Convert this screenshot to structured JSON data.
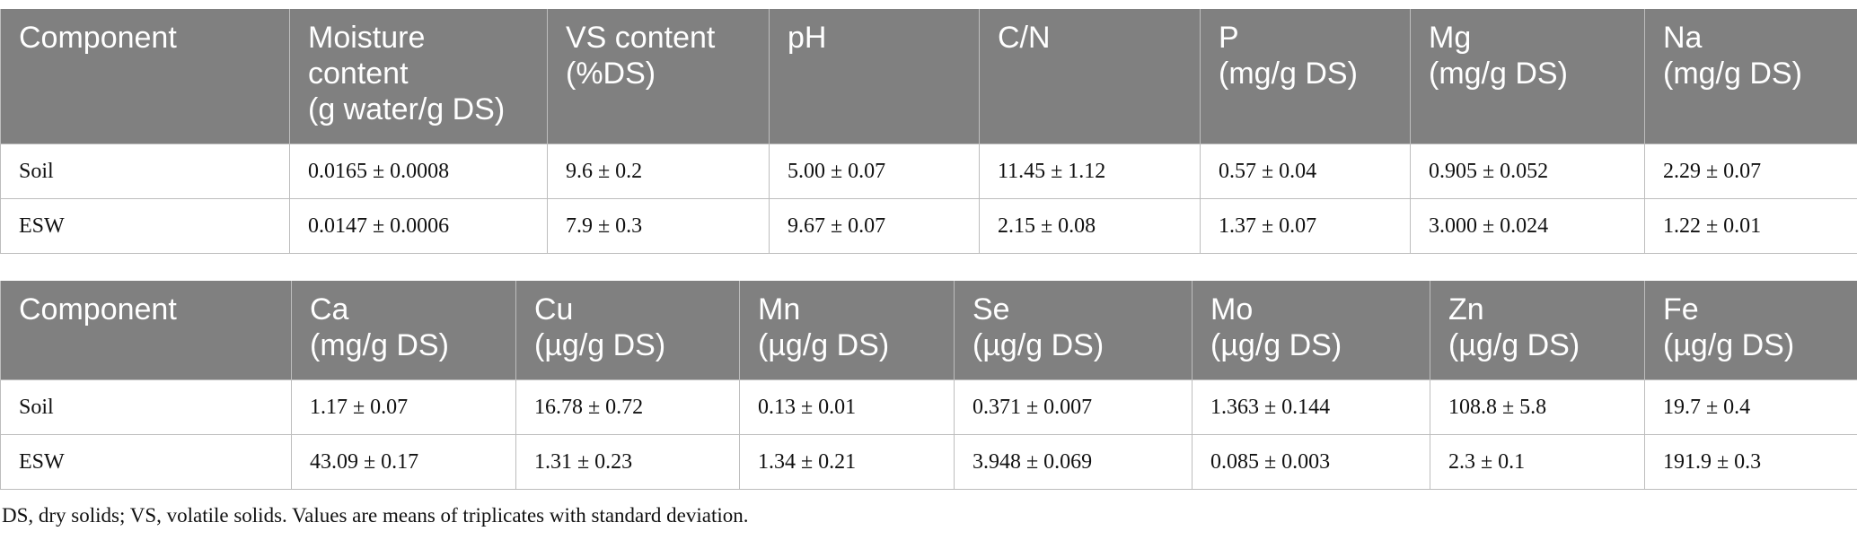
{
  "tables": [
    {
      "headers": [
        [
          "Component"
        ],
        [
          "Moisture",
          "content",
          "(g water/g DS)"
        ],
        [
          "VS content",
          "(%DS)"
        ],
        [
          "pH"
        ],
        [
          "C/N"
        ],
        [
          "P",
          "(mg/g DS)"
        ],
        [
          "Mg",
          "(mg/g DS)"
        ],
        [
          "Na",
          "(mg/g DS)"
        ]
      ],
      "rows": [
        [
          "Soil",
          "0.0165 ± 0.0008",
          "9.6 ± 0.2",
          "5.00 ± 0.07",
          "11.45 ± 1.12",
          "0.57 ± 0.04",
          "0.905 ± 0.052",
          "2.29 ± 0.07"
        ],
        [
          "ESW",
          "0.0147 ± 0.0006",
          "7.9 ± 0.3",
          "9.67 ± 0.07",
          "2.15 ± 0.08",
          "1.37 ± 0.07",
          "3.000 ± 0.024",
          "1.22 ± 0.01"
        ]
      ]
    },
    {
      "headers": [
        [
          "Component"
        ],
        [
          "Ca",
          "(mg/g DS)"
        ],
        [
          "Cu",
          "(µg/g DS)"
        ],
        [
          "Mn",
          "(µg/g DS)"
        ],
        [
          "Se",
          "(µg/g DS)"
        ],
        [
          "Mo",
          "(µg/g DS)"
        ],
        [
          "Zn",
          "(µg/g DS)"
        ],
        [
          "Fe",
          "(µg/g DS)"
        ]
      ],
      "rows": [
        [
          "Soil",
          "1.17 ± 0.07",
          "16.78 ± 0.72",
          "0.13 ± 0.01",
          "0.371 ± 0.007",
          "1.363 ± 0.144",
          "108.8 ± 5.8",
          "19.7 ± 0.4"
        ],
        [
          "ESW",
          "43.09 ± 0.17",
          "1.31 ± 0.23",
          "1.34 ± 0.21",
          "3.948 ± 0.069",
          "0.085 ± 0.003",
          "2.3 ± 0.1",
          "191.9 ± 0.3"
        ]
      ]
    }
  ],
  "footnote": "DS, dry solids; VS, volatile solids. Values are means of triplicates with standard deviation."
}
